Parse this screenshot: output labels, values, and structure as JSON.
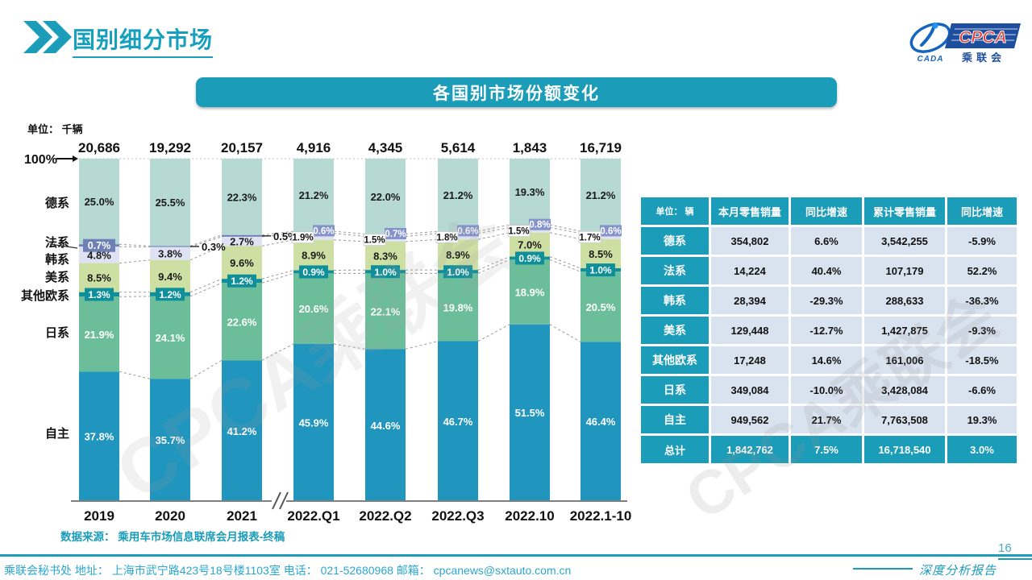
{
  "page": {
    "title": "国别细分市场",
    "banner_title": "各国别市场份额变化",
    "page_number": "16",
    "source_note": "数据来源： 乘用车市场信息联席会月报表-终稿",
    "watermark": "CPCA乘联会",
    "footer_left": "乘联会秘书处   地址： 上海市武宁路423号18号楼1103室  电话： 021-52680968   邮箱： cpcanews@sxtauto.com.cn",
    "footer_right_label": "深度分析报告"
  },
  "logo": {
    "cada": "CADA",
    "cpca": "CPCA",
    "cn": "乘联会"
  },
  "chart_data": {
    "type": "bar",
    "subtype": "stacked-100-percent",
    "unit_label": "单位： 千辆",
    "axis_top_label": "100%",
    "categories": [
      "2019",
      "2020",
      "2021",
      "2022.Q1",
      "2022.Q2",
      "2022.Q3",
      "2022.10",
      "2022.1-10"
    ],
    "totals": [
      "20,686",
      "19,292",
      "20,157",
      "4,916",
      "4,345",
      "5,614",
      "1,843",
      "16,719"
    ],
    "ylim": [
      0,
      100
    ],
    "axis_break_after_index": 2,
    "series": [
      {
        "name": "德系",
        "color": "#b6d9d3",
        "values": [
          25.0,
          25.5,
          22.3,
          21.2,
          22.0,
          21.2,
          19.3,
          21.2
        ]
      },
      {
        "name": "法系",
        "color": "#6f80b6",
        "values": [
          0.7,
          0.3,
          0.5,
          0.6,
          0.7,
          0.6,
          0.8,
          0.6
        ]
      },
      {
        "name": "韩系",
        "color": "#dee2f2",
        "values": [
          4.8,
          3.8,
          2.7,
          1.9,
          1.5,
          1.8,
          1.5,
          1.7
        ]
      },
      {
        "name": "美系",
        "color": "#cedfa3",
        "values": [
          8.5,
          9.4,
          9.6,
          8.9,
          8.3,
          8.9,
          7.0,
          8.5
        ]
      },
      {
        "name": "其他欧系",
        "color": "#0f8f99",
        "values": [
          1.3,
          1.2,
          1.2,
          0.9,
          1.0,
          1.0,
          0.9,
          1.0
        ]
      },
      {
        "name": "日系",
        "color": "#6cbe9b",
        "values": [
          21.9,
          24.1,
          22.6,
          20.6,
          22.1,
          19.8,
          18.9,
          20.5
        ]
      },
      {
        "name": "自主",
        "color": "#2095bd",
        "values": [
          37.8,
          35.7,
          41.2,
          45.9,
          44.6,
          46.7,
          51.5,
          46.4
        ]
      }
    ]
  },
  "table": {
    "unit_header": "单位： 辆",
    "columns": [
      "本月零售销量",
      "同比增速",
      "累计零售销量",
      "同比增速"
    ],
    "rows": [
      {
        "label": "德系",
        "cells": [
          "354,802",
          "6.6%",
          "3,542,255",
          "-5.9%"
        ],
        "is_total": false
      },
      {
        "label": "法系",
        "cells": [
          "14,224",
          "40.4%",
          "107,179",
          "52.2%"
        ],
        "is_total": false
      },
      {
        "label": "韩系",
        "cells": [
          "28,394",
          "-29.3%",
          "288,633",
          "-36.3%"
        ],
        "is_total": false
      },
      {
        "label": "美系",
        "cells": [
          "129,448",
          "-12.7%",
          "1,427,875",
          "-9.3%"
        ],
        "is_total": false
      },
      {
        "label": "其他欧系",
        "cells": [
          "17,248",
          "14.6%",
          "161,006",
          "-18.5%"
        ],
        "is_total": false
      },
      {
        "label": "日系",
        "cells": [
          "349,084",
          "-10.0%",
          "3,428,084",
          "-6.6%"
        ],
        "is_total": false
      },
      {
        "label": "自主",
        "cells": [
          "949,562",
          "21.7%",
          "7,763,508",
          "19.3%"
        ],
        "is_total": false
      },
      {
        "label": "总计",
        "cells": [
          "1,842,762",
          "7.5%",
          "16,718,540",
          "3.0%"
        ],
        "is_total": true
      }
    ]
  }
}
